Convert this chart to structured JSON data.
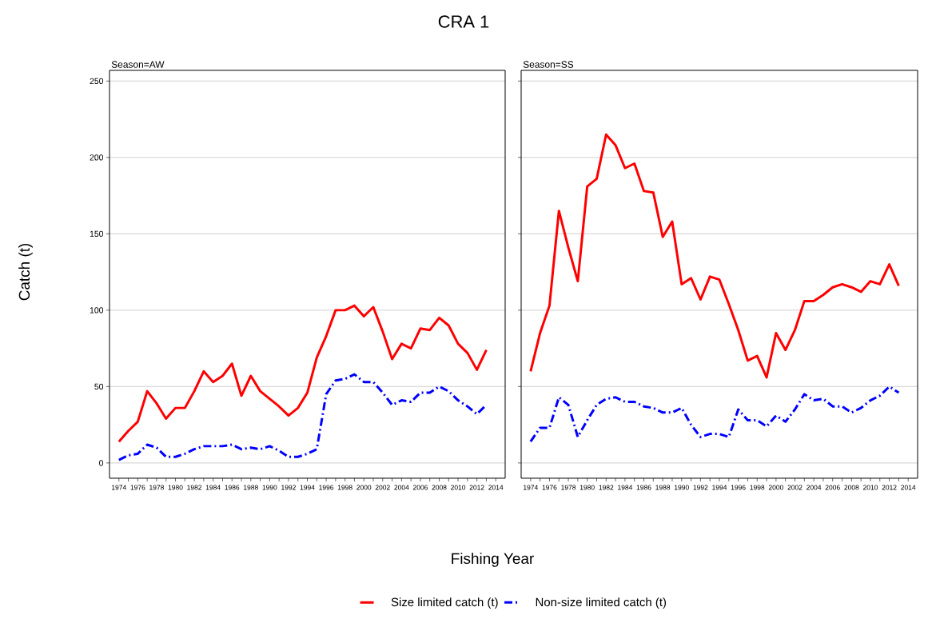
{
  "chart_data": [
    {
      "type": "line",
      "title": "CRA 1",
      "subtitle": "Season=AW",
      "xlabel": "Fishing Year",
      "ylabel": "Catch (t)",
      "x": [
        1974,
        1975,
        1976,
        1977,
        1978,
        1979,
        1980,
        1981,
        1982,
        1983,
        1984,
        1985,
        1986,
        1987,
        1988,
        1989,
        1990,
        1991,
        1992,
        1993,
        1994,
        1995,
        1996,
        1997,
        1998,
        1999,
        2000,
        2001,
        2002,
        2003,
        2004,
        2005,
        2006,
        2007,
        2008,
        2009,
        2010,
        2011,
        2012,
        2013
      ],
      "series": [
        {
          "name": "Size limited catch (t)",
          "color": "#ff0000",
          "line_style": "solid",
          "values": [
            14,
            21,
            27,
            47,
            39,
            29,
            36,
            36,
            47,
            60,
            53,
            57,
            65,
            44,
            57,
            47,
            42,
            37,
            31,
            36,
            46,
            69,
            83,
            100,
            100,
            103,
            96,
            102,
            86,
            68,
            78,
            75,
            88,
            87,
            95,
            90,
            78,
            72,
            61,
            74
          ]
        },
        {
          "name": "Non-size limited catch (t)",
          "color": "#0000ff",
          "line_style": "dashdot",
          "values": [
            2,
            5,
            6,
            12,
            10,
            4,
            4,
            6,
            9,
            11,
            11,
            11,
            12,
            9,
            10,
            9,
            11,
            8,
            4,
            4,
            6,
            9,
            45,
            54,
            55,
            58,
            53,
            53,
            46,
            38,
            41,
            40,
            46,
            46,
            50,
            47,
            41,
            37,
            32,
            38
          ]
        }
      ],
      "xlim": [
        1973,
        2015
      ],
      "ylim": [
        -10,
        257
      ],
      "xticks": [
        1974,
        {
          "value": 1975,
          "label": null
        },
        1976,
        {
          "value": 1977,
          "label": null
        },
        1978,
        {
          "value": 1979,
          "label": null
        },
        1980,
        {
          "value": 1981,
          "label": null
        },
        1982,
        {
          "value": 1983,
          "label": null
        },
        1984,
        {
          "value": 1985,
          "label": null
        },
        1986,
        {
          "value": 1987,
          "label": null
        },
        1988,
        {
          "value": 1989,
          "label": null
        },
        1990,
        {
          "value": 1991,
          "label": null
        },
        1992,
        {
          "value": 1993,
          "label": null
        },
        1994,
        {
          "value": 1995,
          "label": null
        },
        1996,
        {
          "value": 1997,
          "label": null
        },
        1998,
        {
          "value": 1999,
          "label": null
        },
        2000,
        {
          "value": 2001,
          "label": null
        },
        2002,
        {
          "value": 2003,
          "label": null
        },
        2004,
        {
          "value": 2005,
          "label": null
        },
        2006,
        {
          "value": 2007,
          "label": null
        },
        2008,
        {
          "value": 2009,
          "label": null
        },
        2010,
        {
          "value": 2011,
          "label": null
        },
        2012,
        {
          "value": 2013,
          "label": null
        },
        2014
      ],
      "yticks": [
        0,
        50,
        100,
        150,
        200,
        250
      ],
      "grid": "y",
      "legend": "bottom",
      "marker": "none"
    },
    {
      "type": "line",
      "subtitle": "Season=SS",
      "x": [
        1974,
        1975,
        1976,
        1977,
        1978,
        1979,
        1980,
        1981,
        1982,
        1983,
        1984,
        1985,
        1986,
        1987,
        1988,
        1989,
        1990,
        1991,
        1992,
        1993,
        1994,
        1995,
        1996,
        1997,
        1998,
        1999,
        2000,
        2001,
        2002,
        2003,
        2004,
        2005,
        2006,
        2007,
        2008,
        2009,
        2010,
        2011,
        2012,
        2013
      ],
      "series": [
        {
          "color": "#ff0000",
          "line_style": "solid",
          "values": [
            60,
            85,
            103,
            165,
            141,
            119,
            181,
            186,
            215,
            208,
            193,
            196,
            178,
            177,
            148,
            158,
            117,
            121,
            107,
            122,
            120,
            104,
            87,
            67,
            70,
            56,
            85,
            74,
            87,
            106,
            106,
            110,
            115,
            117,
            115,
            112,
            119,
            117,
            130,
            116
          ]
        },
        {
          "color": "#0000ff",
          "line_style": "dashdot",
          "values": [
            14,
            23,
            23,
            43,
            38,
            17,
            28,
            38,
            42,
            43,
            40,
            40,
            37,
            36,
            33,
            33,
            36,
            25,
            17,
            19,
            19,
            17,
            35,
            28,
            28,
            24,
            31,
            27,
            35,
            45,
            41,
            42,
            37,
            37,
            33,
            36,
            41,
            44,
            50,
            46
          ]
        }
      ],
      "xlim": [
        1973,
        2015
      ],
      "ylim": [
        -10,
        257
      ],
      "xticks": [
        1974,
        {
          "value": 1975,
          "label": null
        },
        1976,
        {
          "value": 1977,
          "label": null
        },
        1978,
        {
          "value": 1979,
          "label": null
        },
        1980,
        {
          "value": 1981,
          "label": null
        },
        1982,
        {
          "value": 1983,
          "label": null
        },
        1984,
        {
          "value": 1985,
          "label": null
        },
        1986,
        {
          "value": 1987,
          "label": null
        },
        1988,
        {
          "value": 1989,
          "label": null
        },
        1990,
        {
          "value": 1991,
          "label": null
        },
        1992,
        {
          "value": 1993,
          "label": null
        },
        1994,
        {
          "value": 1995,
          "label": null
        },
        1996,
        {
          "value": 1997,
          "label": null
        },
        1998,
        {
          "value": 1999,
          "label": null
        },
        2000,
        {
          "value": 2001,
          "label": null
        },
        2002,
        {
          "value": 2003,
          "label": null
        },
        2004,
        {
          "value": 2005,
          "label": null
        },
        2006,
        {
          "value": 2007,
          "label": null
        },
        2008,
        {
          "value": 2009,
          "label": null
        },
        2010,
        {
          "value": 2011,
          "label": null
        },
        2012,
        {
          "value": 2013,
          "label": null
        },
        2014
      ],
      "yticks": [
        0,
        50,
        100,
        150,
        200,
        250
      ],
      "grid": "y",
      "tick_labels": "x",
      "marker": "none"
    }
  ]
}
